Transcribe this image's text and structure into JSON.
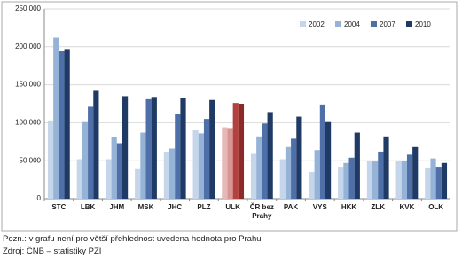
{
  "chart_data": {
    "type": "bar",
    "categories": [
      "STC",
      "LBK",
      "JHM",
      "MSK",
      "JHC",
      "PLZ",
      "ULK",
      "ČR bez Prahy",
      "PAK",
      "VYS",
      "HKK",
      "ZLK",
      "KVK",
      "OLK"
    ],
    "series": [
      {
        "name": "2002",
        "color": "#c5d5ea",
        "highlight_color": "#e6b9b8",
        "values": [
          103000,
          52000,
          52000,
          40000,
          62000,
          91000,
          94000,
          59000,
          52000,
          35000,
          42000,
          50000,
          50000,
          41000
        ]
      },
      {
        "name": "2004",
        "color": "#95b3d7",
        "highlight_color": "#d99594",
        "values": [
          212000,
          102000,
          81000,
          87000,
          66000,
          86000,
          93000,
          82000,
          68000,
          64000,
          47000,
          49000,
          50000,
          53000
        ]
      },
      {
        "name": "2007",
        "color": "#4f6fa8",
        "highlight_color": "#b3413e",
        "values": [
          195000,
          121000,
          73000,
          131000,
          112000,
          105000,
          126000,
          99000,
          79000,
          124000,
          54000,
          62000,
          58000,
          42000
        ]
      },
      {
        "name": "2010",
        "color": "#1f3a64",
        "highlight_color": "#8b2b29",
        "values": [
          197000,
          142000,
          135000,
          134000,
          132000,
          130000,
          125000,
          114000,
          108000,
          102000,
          87000,
          82000,
          68000,
          47000
        ]
      }
    ],
    "highlight_category": "ULK",
    "ylim": [
      0,
      250000
    ],
    "yticks": [
      0,
      {
        "value": 50000,
        "label": "50 000"
      },
      {
        "value": 100000,
        "label": "100 000"
      },
      {
        "value": 150000,
        "label": "150 000"
      },
      {
        "value": 200000,
        "label": "200 000"
      },
      {
        "value": 250000,
        "label": "250 000"
      }
    ],
    "grid": true,
    "legend": "top-right",
    "notes": [
      "Pozn.: v grafu není pro větší přehlednost uvedena hodnota pro Prahu",
      "Zdroj: ČNB – statistiky PZI"
    ]
  }
}
